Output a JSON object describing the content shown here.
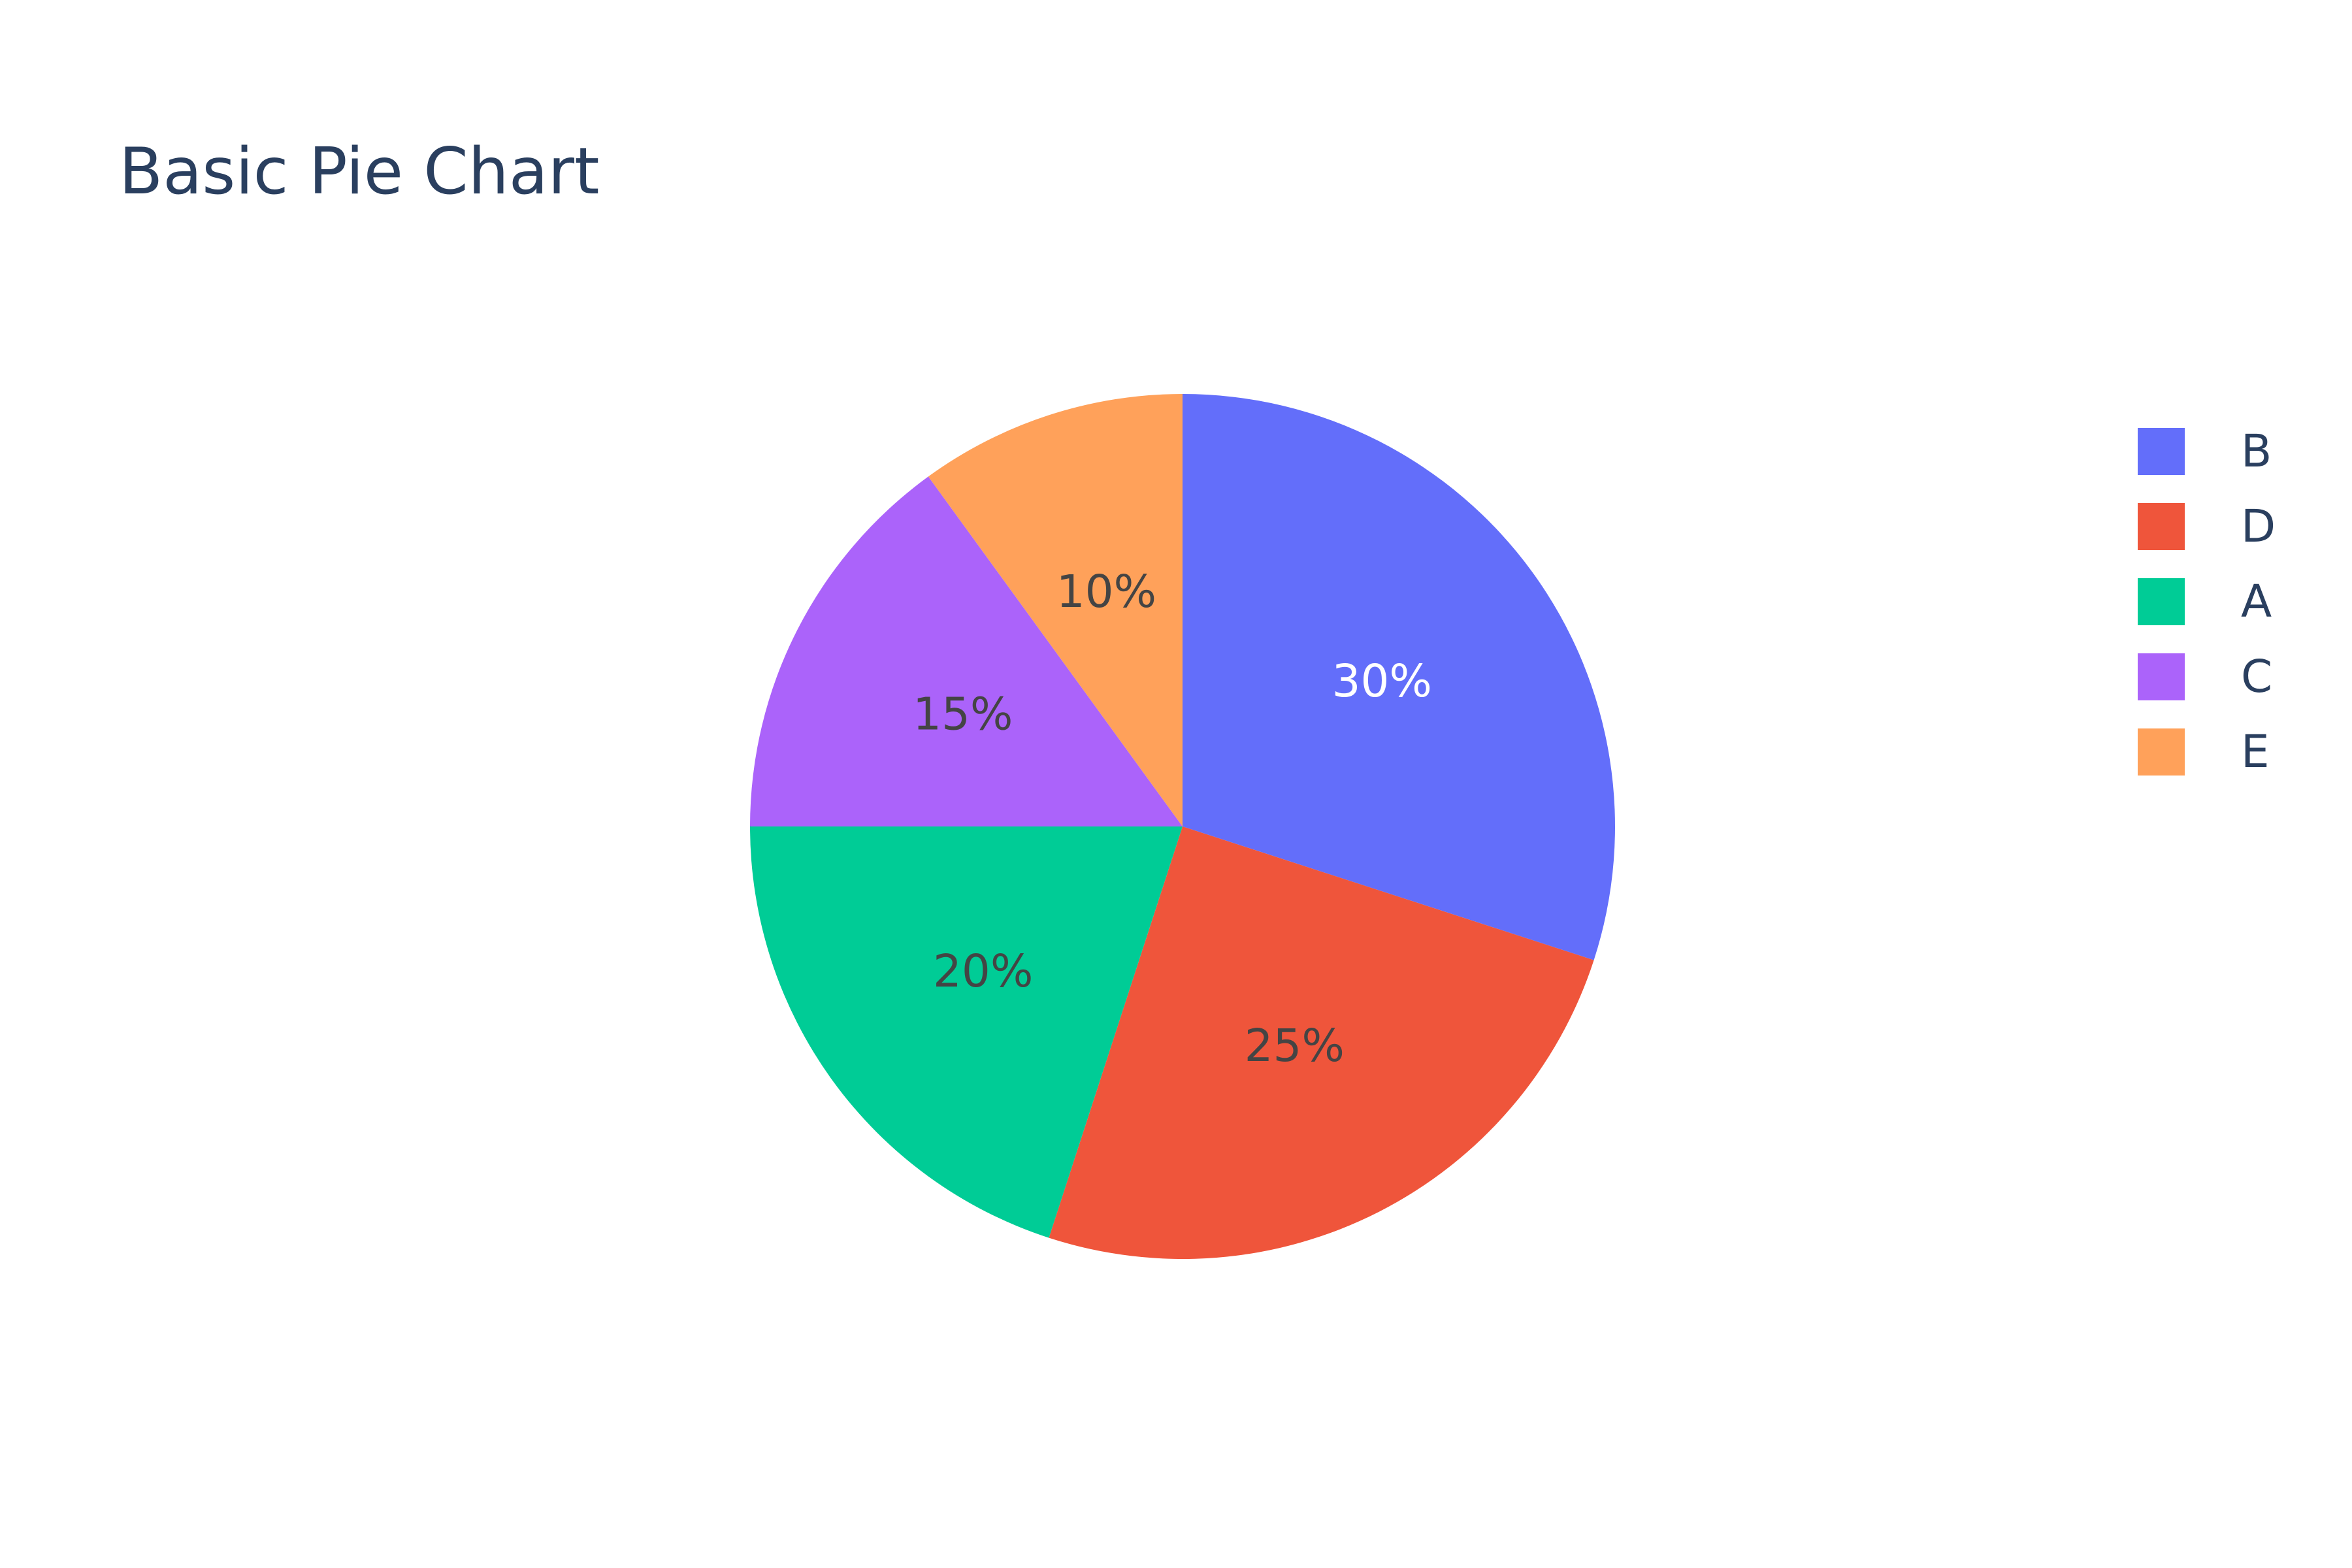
{
  "chart_data": {
    "type": "pie",
    "title": "Basic Pie Chart",
    "slices": [
      {
        "label": "B",
        "value": 30,
        "text": "30%",
        "color": "#636efa",
        "text_color": "#ffffff"
      },
      {
        "label": "D",
        "value": 25,
        "text": "25%",
        "color": "#ef553b",
        "text_color": "#444444"
      },
      {
        "label": "A",
        "value": 20,
        "text": "20%",
        "color": "#00cc96",
        "text_color": "#444444"
      },
      {
        "label": "C",
        "value": 15,
        "text": "15%",
        "color": "#ab63fa",
        "text_color": "#444444"
      },
      {
        "label": "E",
        "value": 10,
        "text": "10%",
        "color": "#ffa15a",
        "text_color": "#444444"
      }
    ],
    "direction": "clockwise",
    "legend_position": "top-right"
  }
}
